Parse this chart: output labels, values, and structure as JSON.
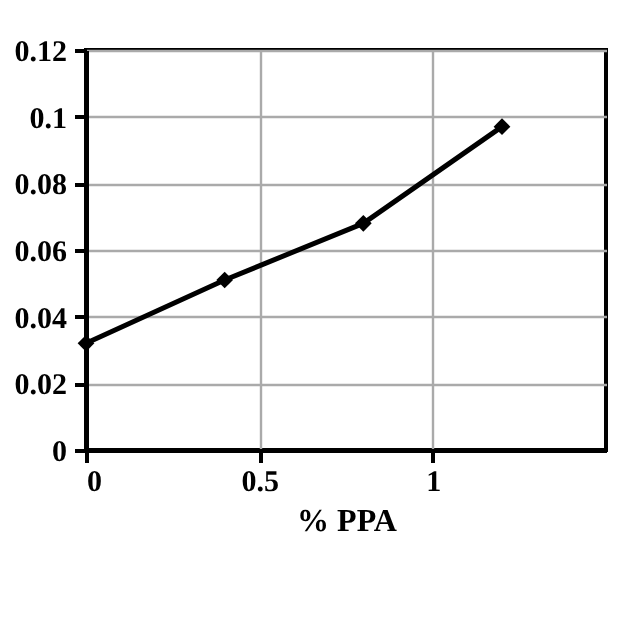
{
  "chart_data": {
    "type": "line",
    "xlabel": "% PPA",
    "x": [
      0,
      0.4,
      0.8,
      1.2
    ],
    "series": [
      {
        "color": "#000000",
        "values": [
          0.032,
          0.051,
          0.068,
          0.097
        ]
      }
    ],
    "xlim": [
      0,
      1.5
    ],
    "xticks": [
      0,
      0.5,
      1
    ],
    "ylim": [
      0,
      0.12
    ],
    "yticks": [
      0,
      0.02,
      0.04,
      0.06,
      0.08,
      0.1,
      0.12
    ],
    "grid": true,
    "marker": "diamond",
    "line_style": "solid"
  }
}
